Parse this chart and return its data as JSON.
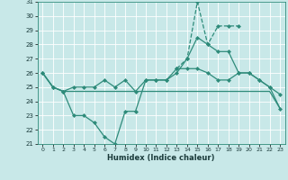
{
  "xlabel": "Humidex (Indice chaleur)",
  "x_values": [
    0,
    1,
    2,
    3,
    4,
    5,
    6,
    7,
    8,
    9,
    10,
    11,
    12,
    13,
    14,
    15,
    16,
    17,
    18,
    19,
    20,
    21,
    22,
    23
  ],
  "line_mid_flat": [
    26,
    25,
    24.7,
    24.7,
    24.7,
    24.7,
    24.7,
    24.7,
    24.7,
    24.7,
    24.7,
    24.7,
    24.7,
    24.7,
    24.7,
    24.7,
    24.7,
    24.7,
    24.7,
    24.7,
    24.7,
    24.7,
    24.7,
    23.5
  ],
  "line_upper": [
    26,
    25,
    24.7,
    25,
    25,
    25,
    25.5,
    25,
    25.5,
    24.7,
    25.5,
    25.5,
    25.5,
    26,
    27,
    28.5,
    28,
    27.5,
    27.5,
    26,
    26,
    25.5,
    25,
    24.5
  ],
  "line_lower": [
    26,
    25,
    24.7,
    23,
    23,
    22.5,
    21.5,
    21,
    23.3,
    23.3,
    25.5,
    25.5,
    25.5,
    26.3,
    26.3,
    26.3,
    26,
    25.5,
    25.5,
    26,
    26,
    25.5,
    25,
    23.5
  ],
  "line_peak_x": [
    13,
    14,
    15,
    16,
    17,
    18,
    19
  ],
  "line_peak_y": [
    26.3,
    27,
    31,
    28,
    29.3,
    29.3,
    29.3
  ],
  "line_color": "#2e8b7a",
  "bg_color": "#c8e8e8",
  "grid_color": "#aad4d4",
  "ylim": [
    21,
    31
  ],
  "yticks": [
    21,
    22,
    23,
    24,
    25,
    26,
    27,
    28,
    29,
    30,
    31
  ],
  "xticks": [
    0,
    1,
    2,
    3,
    4,
    5,
    6,
    7,
    8,
    9,
    10,
    11,
    12,
    13,
    14,
    15,
    16,
    17,
    18,
    19,
    20,
    21,
    22,
    23
  ]
}
